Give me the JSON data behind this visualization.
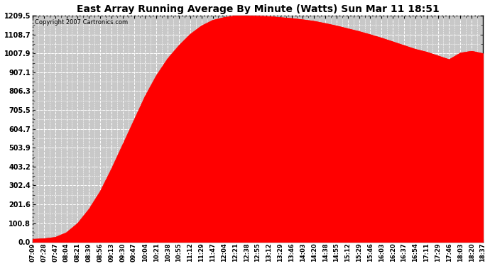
{
  "title": "East Array Running Average By Minute (Watts) Sun Mar 11 18:51",
  "copyright": "Copyright 2007 Cartronics.com",
  "background_color": "#ffffff",
  "fill_color": "#ff0000",
  "line_color": "#ff0000",
  "grid_color": "#c8c8c8",
  "plot_bg_color": "#c8c8c8",
  "ymin": 0.0,
  "ymax": 1209.5,
  "yticks": [
    0.0,
    100.8,
    201.6,
    302.4,
    403.2,
    503.9,
    604.7,
    705.5,
    806.3,
    907.1,
    1007.9,
    1108.7,
    1209.5
  ],
  "x_labels": [
    "07:09",
    "07:28",
    "07:47",
    "08:04",
    "08:21",
    "08:39",
    "08:56",
    "09:13",
    "09:30",
    "09:47",
    "10:04",
    "10:21",
    "10:38",
    "10:55",
    "11:12",
    "11:29",
    "11:47",
    "12:04",
    "12:21",
    "12:38",
    "12:55",
    "13:12",
    "13:29",
    "13:46",
    "14:03",
    "14:20",
    "14:38",
    "14:55",
    "15:12",
    "15:29",
    "15:46",
    "16:03",
    "16:20",
    "16:37",
    "16:54",
    "17:11",
    "17:29",
    "17:46",
    "18:03",
    "18:20",
    "18:37"
  ],
  "y_values": [
    15,
    18,
    25,
    50,
    100,
    175,
    270,
    390,
    520,
    650,
    780,
    890,
    980,
    1050,
    1110,
    1155,
    1185,
    1200,
    1209,
    1209,
    1207,
    1205,
    1200,
    1195,
    1188,
    1180,
    1168,
    1155,
    1140,
    1125,
    1108,
    1090,
    1070,
    1050,
    1030,
    1015,
    995,
    975,
    1010,
    1020,
    1007
  ],
  "figwidth": 6.9,
  "figheight": 3.75,
  "dpi": 100
}
